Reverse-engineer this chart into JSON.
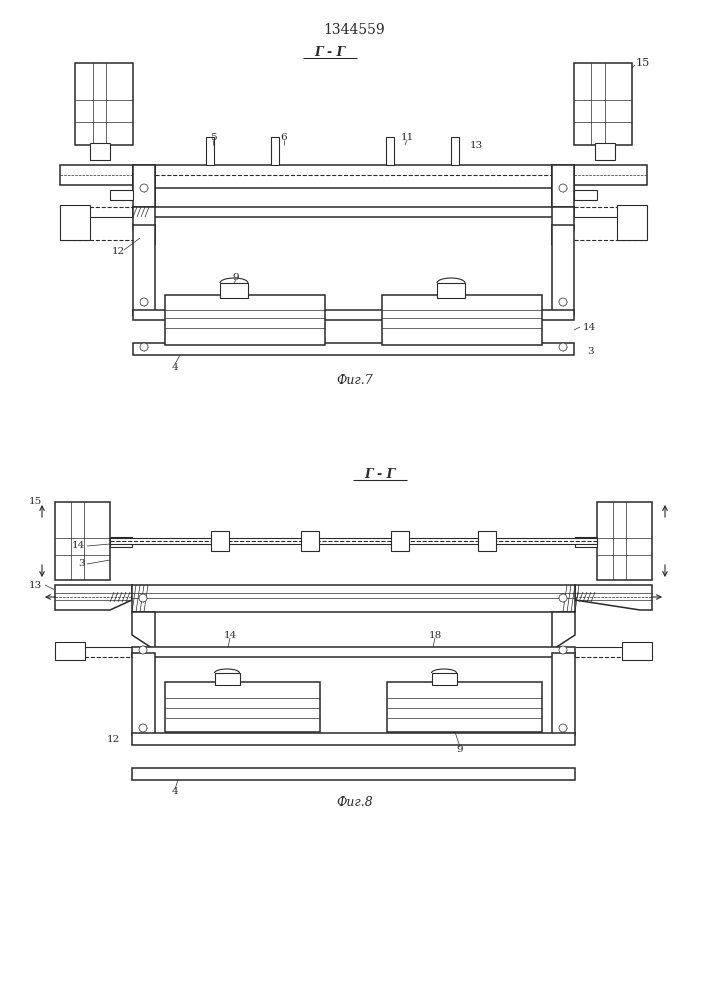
{
  "title": "1344559",
  "title_fontsize": 10,
  "fig_width": 7.07,
  "fig_height": 10.0,
  "dpi": 100,
  "bg_color": "#ffffff",
  "line_color": "#2a2a2a",
  "fig7_label": "Фиг.7",
  "fig8_label": "Фиг.8",
  "section_label": "Г - Г"
}
